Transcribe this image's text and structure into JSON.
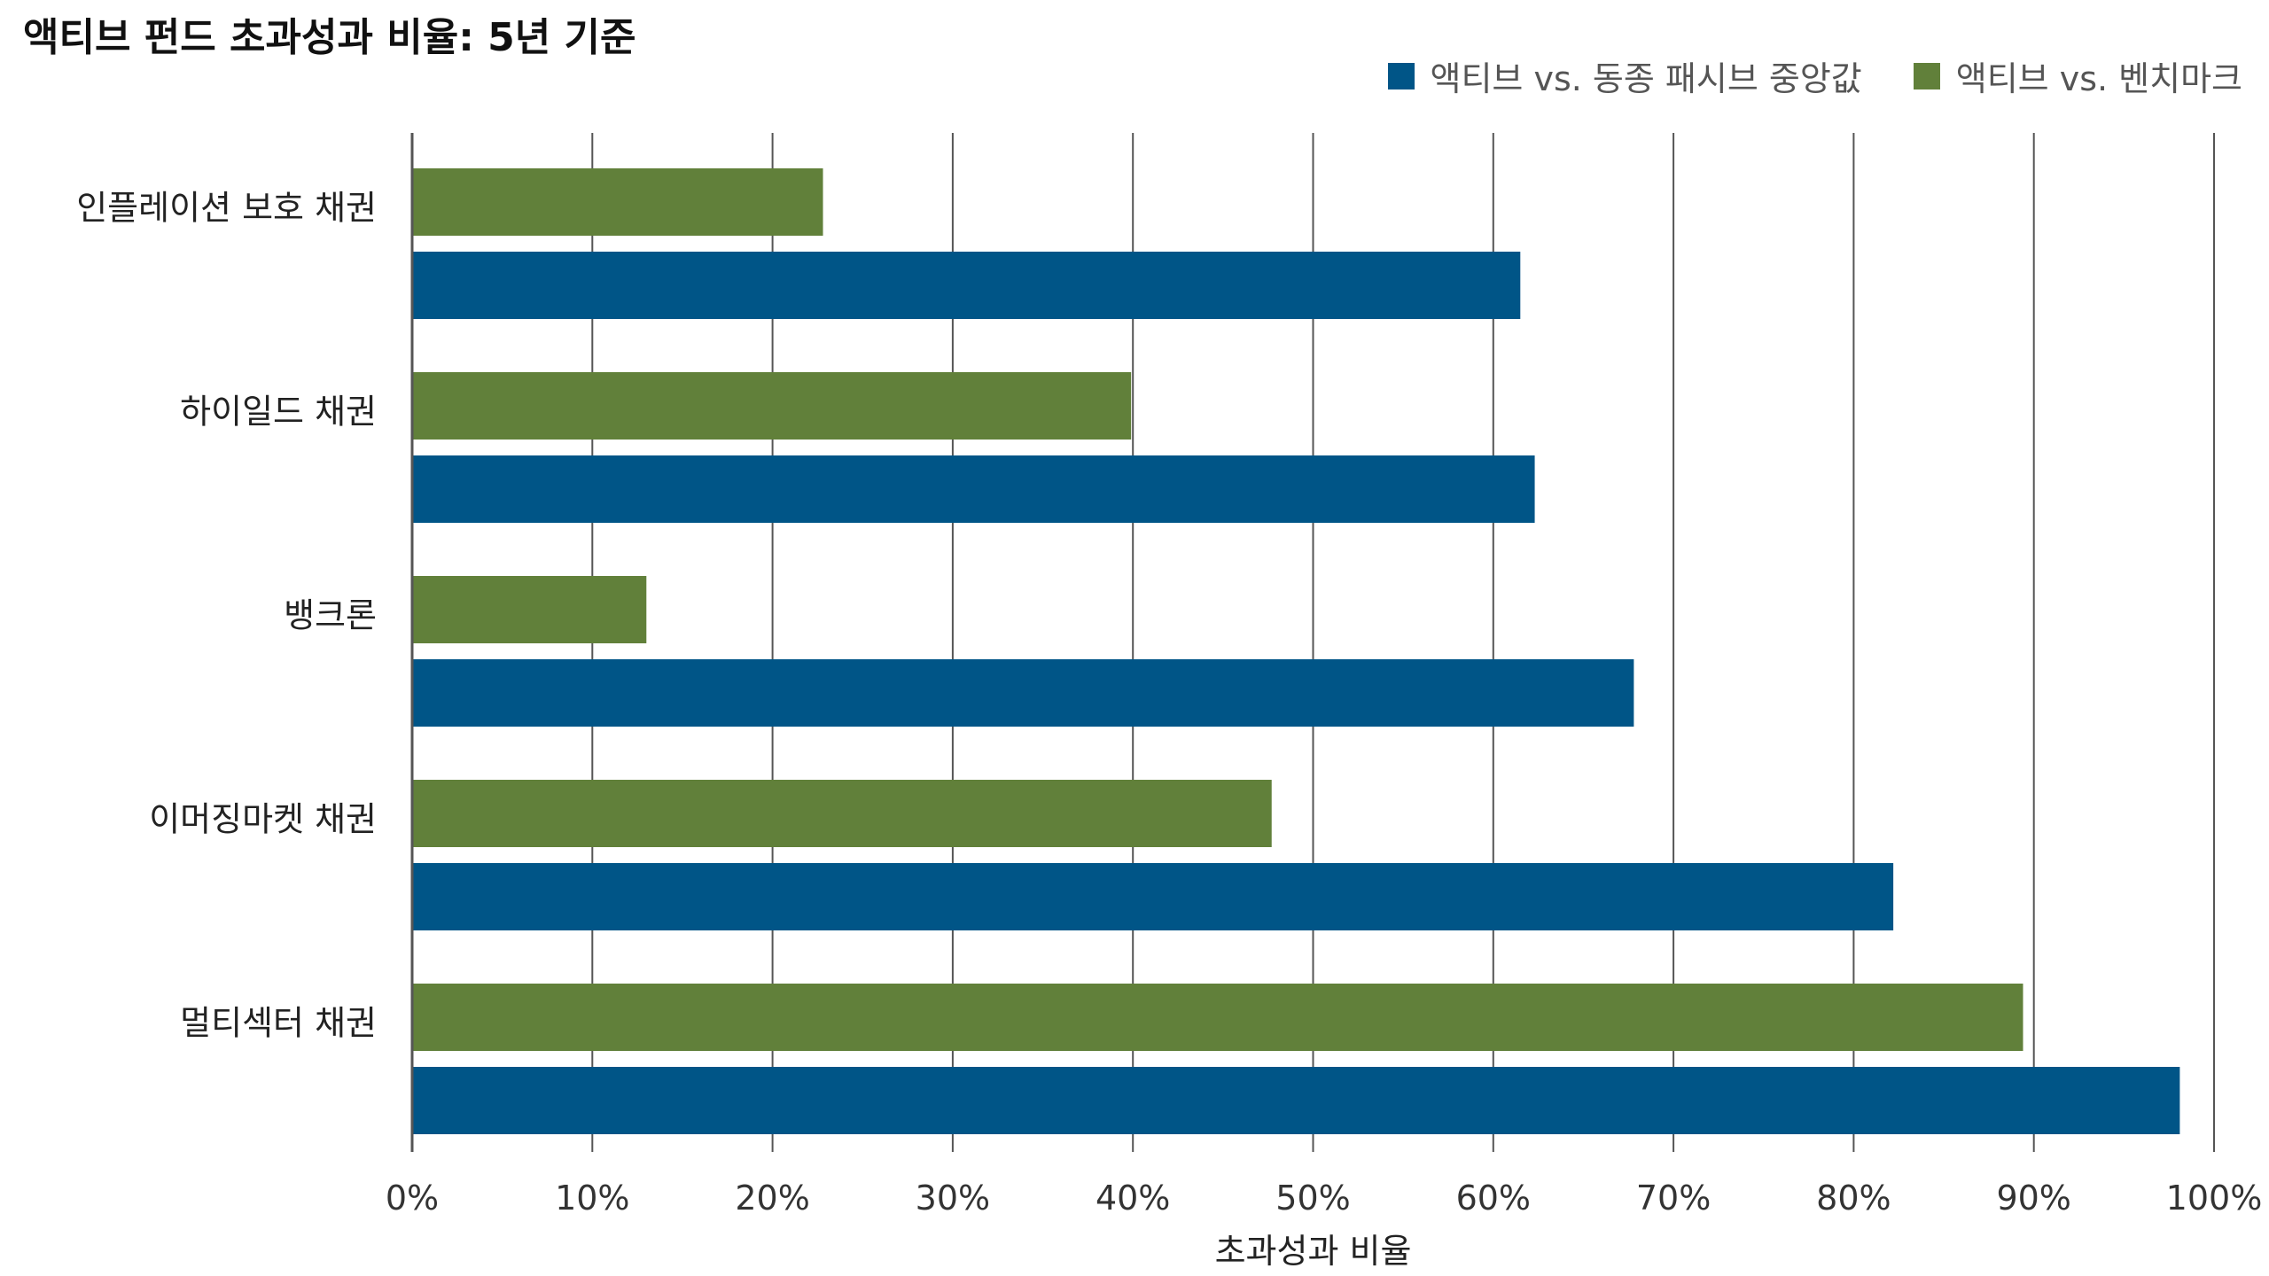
{
  "chart_data": {
    "type": "bar",
    "orientation": "horizontal",
    "title": "액티브 펀드 초과성과 비율: 5년 기준",
    "xlabel": "초과성과 비율",
    "ylabel": "",
    "xlim": [
      0,
      100
    ],
    "x_ticks": [
      "0%",
      "10%",
      "20%",
      "30%",
      "40%",
      "50%",
      "60%",
      "70%",
      "80%",
      "90%",
      "100%"
    ],
    "grid": "vertical",
    "legend_position": "top-right",
    "categories": [
      "인플레이션 보호 채권",
      "하이일드 채권",
      "뱅크론",
      "이머징마켓 채권",
      "멀티섹터 채권"
    ],
    "series": [
      {
        "name": "액티브 vs. 동종 패시브 중앙값",
        "color": "#005587",
        "values": [
          61.5,
          62.3,
          67.8,
          82.2,
          98.1
        ]
      },
      {
        "name": "액티브 vs. 벤치마크",
        "color": "#61803a",
        "values": [
          22.8,
          39.9,
          13.0,
          47.7,
          89.4
        ]
      }
    ]
  }
}
